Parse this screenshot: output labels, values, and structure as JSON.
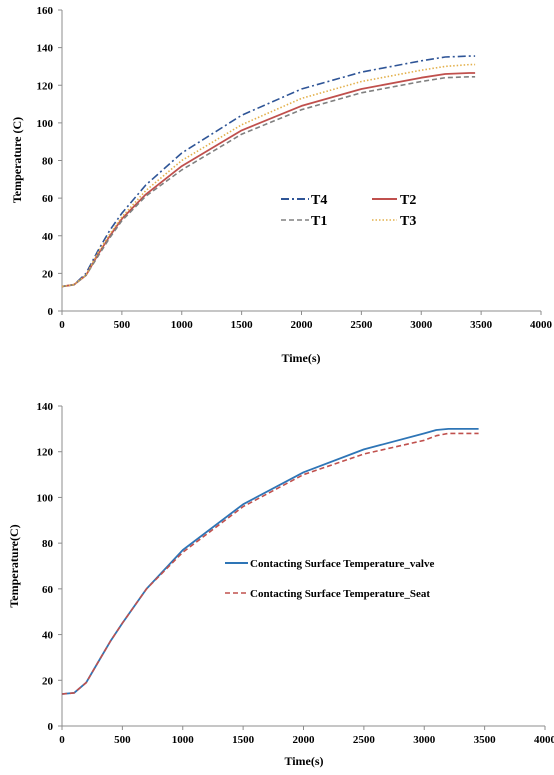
{
  "chart_data": [
    {
      "type": "line",
      "title": "",
      "xlabel": "Time(s)",
      "ylabel": "Temperature  (C)",
      "xlim": [
        0,
        4000
      ],
      "ylim": [
        0,
        160
      ],
      "xticks": [
        "0",
        "500",
        "1000",
        "1500",
        "2000",
        "2500",
        "3000",
        "3500",
        "4000"
      ],
      "yticks": [
        "0",
        "20",
        "40",
        "60",
        "80",
        "100",
        "120",
        "140",
        "160"
      ],
      "grid": false,
      "legend": "center",
      "series": [
        {
          "name": "T4",
          "color": "#2f5597",
          "dash": "dash-dot",
          "x": [
            0,
            100,
            200,
            300,
            400,
            500,
            700,
            1000,
            1500,
            2000,
            2500,
            3000,
            3200,
            3400,
            3450
          ],
          "y": [
            13,
            14,
            20,
            32,
            43,
            52,
            67,
            84,
            104,
            118,
            127,
            133,
            135,
            135.5,
            135.5
          ]
        },
        {
          "name": "T2",
          "color": "#c0504d",
          "dash": "solid",
          "x": [
            0,
            100,
            200,
            300,
            400,
            500,
            700,
            1000,
            1500,
            2000,
            2500,
            3000,
            3200,
            3400,
            3450
          ],
          "y": [
            13,
            14,
            19,
            30,
            40,
            49,
            62,
            77,
            96,
            109,
            118,
            124,
            126,
            126.5,
            126.5
          ]
        },
        {
          "name": "T1",
          "color": "#808080",
          "dash": "dash",
          "x": [
            0,
            100,
            200,
            300,
            400,
            500,
            700,
            1000,
            1500,
            2000,
            2500,
            3000,
            3200,
            3400,
            3450
          ],
          "y": [
            13,
            14,
            19,
            29,
            39,
            48,
            61,
            75,
            94,
            107,
            116,
            122,
            124,
            124.5,
            124.5
          ]
        },
        {
          "name": "T3",
          "color": "#e3b04b",
          "dash": "dot",
          "x": [
            0,
            100,
            200,
            300,
            400,
            500,
            700,
            1000,
            1500,
            2000,
            2500,
            3000,
            3200,
            3400,
            3450
          ],
          "y": [
            13,
            14,
            19,
            31,
            41,
            50,
            64,
            80,
            99,
            113,
            122,
            128,
            130,
            131,
            131
          ]
        }
      ]
    },
    {
      "type": "line",
      "title": "",
      "xlabel": "Time(s)",
      "ylabel": "Temperature(C)",
      "xlim": [
        0,
        4000
      ],
      "ylim": [
        0,
        140
      ],
      "xticks": [
        "0",
        "500",
        "1000",
        "1500",
        "2000",
        "2500",
        "3000",
        "3500",
        "4000"
      ],
      "yticks": [
        "0",
        "20",
        "40",
        "60",
        "80",
        "100",
        "120",
        "140"
      ],
      "grid": false,
      "legend": "center-right",
      "series": [
        {
          "name": "Contacting Surface Temperature_valve",
          "color": "#2e75b6",
          "dash": "solid",
          "x": [
            0,
            100,
            200,
            300,
            400,
            500,
            700,
            1000,
            1500,
            2000,
            2500,
            3000,
            3100,
            3200,
            3400,
            3450
          ],
          "y": [
            14,
            14.5,
            19,
            28,
            37,
            45,
            60,
            77,
            97,
            111,
            121,
            128,
            129.5,
            130,
            130,
            130
          ]
        },
        {
          "name": "Contacting Surface Temperature_Seat",
          "color": "#c0504d",
          "dash": "dash",
          "x": [
            0,
            100,
            200,
            300,
            400,
            500,
            700,
            1000,
            1500,
            2000,
            2500,
            3000,
            3100,
            3200,
            3400,
            3450
          ],
          "y": [
            14,
            14.5,
            19,
            28,
            37,
            45,
            60,
            76,
            96,
            110,
            119,
            125,
            127,
            128,
            128,
            128
          ]
        }
      ]
    }
  ]
}
